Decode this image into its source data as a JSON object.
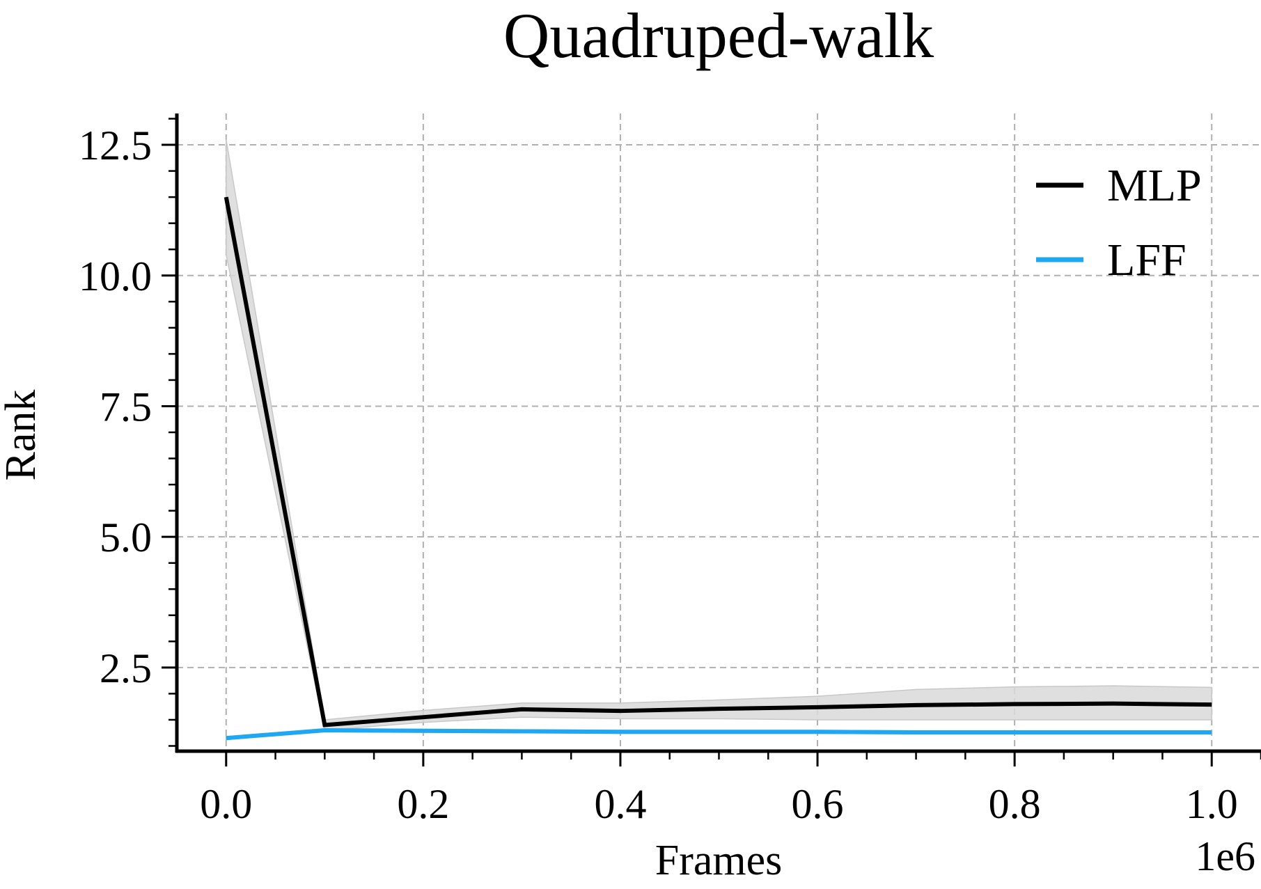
{
  "chart_data": {
    "type": "line",
    "title": "Quadruped-walk",
    "xlabel": "Frames",
    "ylabel": "Rank",
    "x_offset_label": "1e6",
    "xlim": [
      -0.05,
      1.05
    ],
    "ylim": [
      0.9,
      13.1
    ],
    "xticks": [
      0.0,
      0.2,
      0.4,
      0.6,
      0.8,
      1.0
    ],
    "xtick_labels": [
      "0.0",
      "0.2",
      "0.4",
      "0.6",
      "0.8",
      "1.0"
    ],
    "yticks": [
      2.5,
      5.0,
      7.5,
      10.0,
      12.5
    ],
    "ytick_labels": [
      "2.5",
      "5.0",
      "7.5",
      "10.0",
      "12.5"
    ],
    "grid": true,
    "legend_position": "top-right",
    "series": [
      {
        "name": "MLP",
        "color": "#000000",
        "x": [
          0.0,
          0.1,
          0.2,
          0.3,
          0.4,
          0.5,
          0.6,
          0.7,
          0.8,
          0.9,
          1.0
        ],
        "y": [
          11.5,
          1.4,
          1.55,
          1.7,
          1.67,
          1.71,
          1.74,
          1.78,
          1.8,
          1.81,
          1.79
        ],
        "band_low": [
          10.4,
          1.3,
          1.45,
          1.55,
          1.52,
          1.52,
          1.5,
          1.5,
          1.5,
          1.5,
          1.5
        ],
        "band_high": [
          12.6,
          1.5,
          1.68,
          1.82,
          1.82,
          1.88,
          1.95,
          2.08,
          2.13,
          2.15,
          2.12
        ]
      },
      {
        "name": "LFF",
        "color": "#1ea7f2",
        "x": [
          0.0,
          0.1,
          0.2,
          0.3,
          0.4,
          0.5,
          0.6,
          0.7,
          0.8,
          0.9,
          1.0
        ],
        "y": [
          1.15,
          1.3,
          1.29,
          1.28,
          1.27,
          1.27,
          1.27,
          1.26,
          1.26,
          1.26,
          1.26
        ],
        "band_low": [
          1.12,
          1.27,
          1.26,
          1.25,
          1.24,
          1.24,
          1.24,
          1.23,
          1.23,
          1.23,
          1.23
        ],
        "band_high": [
          1.18,
          1.33,
          1.32,
          1.31,
          1.3,
          1.3,
          1.3,
          1.29,
          1.29,
          1.29,
          1.29
        ]
      }
    ],
    "style": {
      "grid_color": "#b0b0b0",
      "band_color": "#d9d9d9",
      "axis_color": "#000000"
    }
  }
}
